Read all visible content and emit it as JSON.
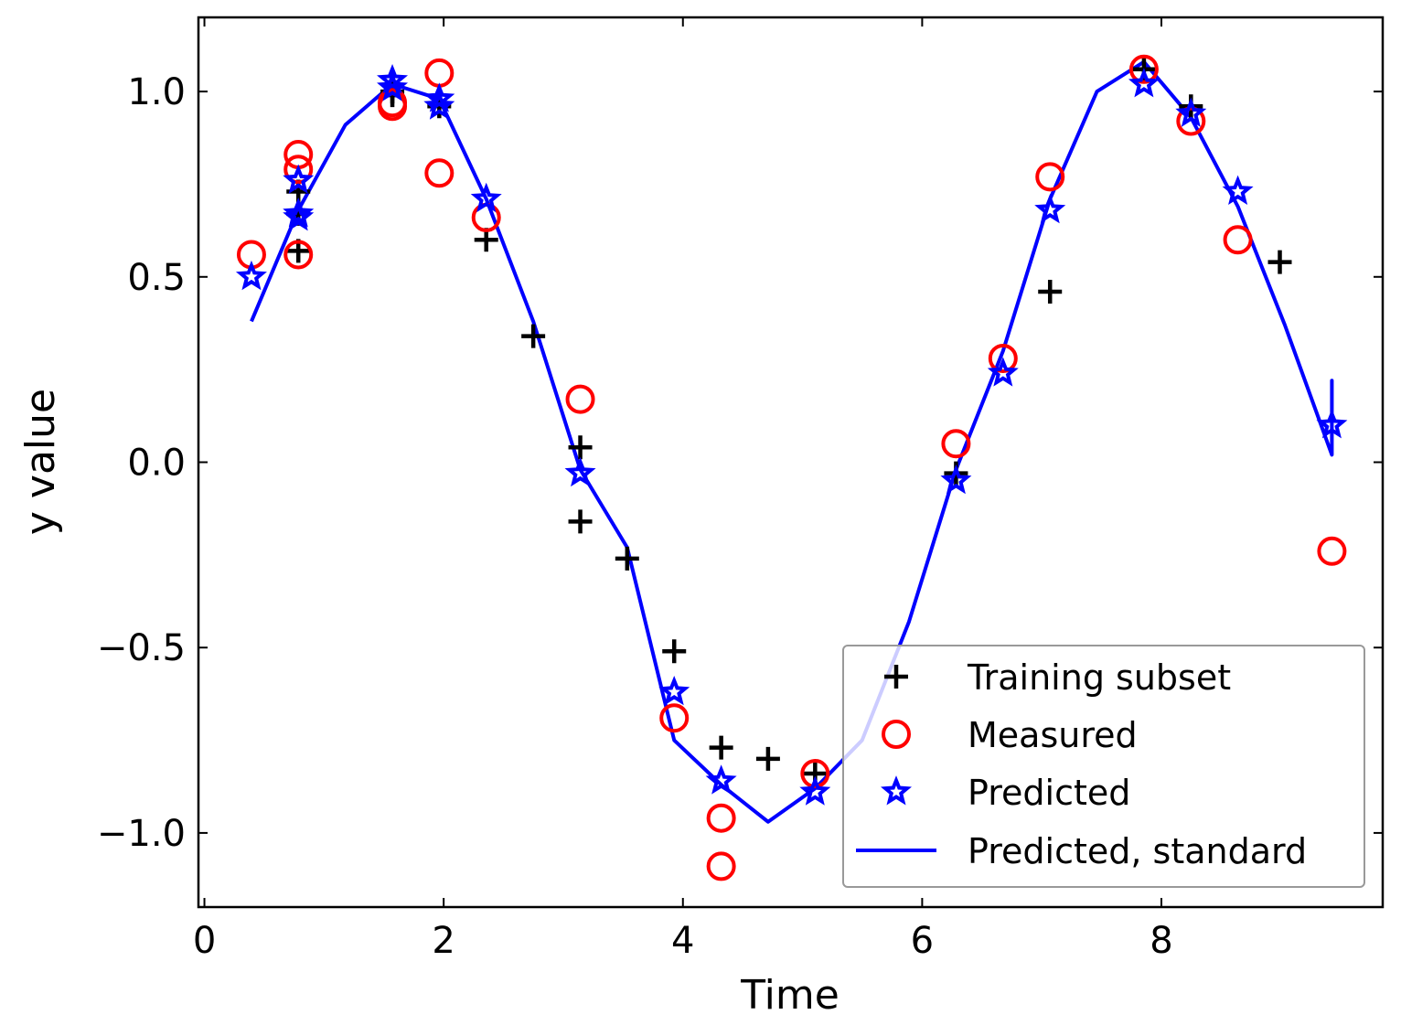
{
  "chart_data": {
    "type": "scatter",
    "title": "",
    "xlabel": "Time",
    "ylabel": "y value",
    "xlim": [
      -0.05,
      9.85
    ],
    "ylim": [
      -1.2,
      1.2
    ],
    "xticks": [
      0,
      2,
      4,
      6,
      8
    ],
    "yticks": [
      1.0,
      0.5,
      0.0,
      -0.5,
      -1.0
    ],
    "xtick_labels": [
      "0",
      "2",
      "4",
      "6",
      "8"
    ],
    "ytick_labels": [
      "1.0",
      "0.5",
      "0.0",
      "−0.5",
      "−1.0"
    ],
    "grid": false,
    "legend_position": "lower-right",
    "colors": {
      "training": "#000000",
      "measured": "#ff0000",
      "predicted": "#0000ff",
      "line": "#0000ff",
      "legend_border": "#999999"
    },
    "series": [
      {
        "name": "Training subset",
        "marker": "plus",
        "x": [
          0.785,
          0.785,
          0.785,
          1.571,
          1.571,
          1.963,
          2.356,
          2.749,
          3.142,
          3.142,
          3.534,
          3.927,
          4.32,
          4.712,
          5.105,
          6.283,
          7.069,
          7.854,
          8.247,
          8.99
        ],
        "y": [
          0.73,
          0.57,
          0.67,
          0.99,
          1.0,
          0.96,
          0.6,
          0.34,
          0.04,
          -0.16,
          -0.26,
          -0.51,
          -0.77,
          -0.8,
          -0.84,
          -0.03,
          0.46,
          1.06,
          0.96,
          0.54
        ]
      },
      {
        "name": "Measured",
        "marker": "circle",
        "x": [
          0.393,
          0.785,
          0.785,
          0.785,
          1.571,
          1.571,
          1.963,
          1.963,
          2.356,
          3.142,
          3.927,
          4.32,
          4.32,
          5.105,
          6.283,
          6.676,
          7.069,
          7.854,
          8.247,
          8.639,
          9.425
        ],
        "y": [
          0.56,
          0.83,
          0.79,
          0.56,
          0.97,
          0.96,
          1.05,
          0.78,
          0.66,
          0.17,
          -0.69,
          -0.96,
          -1.09,
          -0.84,
          0.05,
          0.28,
          0.77,
          1.06,
          0.92,
          0.6,
          -0.24
        ]
      },
      {
        "name": "Predicted",
        "marker": "star",
        "x": [
          0.393,
          0.785,
          0.785,
          0.785,
          1.571,
          1.571,
          1.963,
          1.963,
          2.356,
          3.142,
          3.927,
          4.32,
          5.105,
          6.283,
          6.676,
          7.069,
          7.854,
          8.247,
          8.639,
          9.425
        ],
        "y": [
          0.5,
          0.76,
          0.67,
          0.66,
          1.03,
          1.01,
          0.98,
          0.96,
          0.71,
          -0.03,
          -0.62,
          -0.86,
          -0.89,
          -0.05,
          0.24,
          0.68,
          1.02,
          0.94,
          0.73,
          0.1
        ]
      },
      {
        "name": "Predicted, standard",
        "marker": "line",
        "x": [
          0.393,
          0.785,
          1.178,
          1.571,
          1.963,
          2.356,
          2.749,
          3.142,
          3.534,
          3.927,
          4.32,
          4.712,
          5.105,
          5.498,
          5.89,
          6.283,
          6.676,
          7.069,
          7.461,
          7.854,
          8.247,
          8.639,
          9.032,
          9.425,
          9.425,
          9.425
        ],
        "y": [
          0.38,
          0.68,
          0.91,
          1.02,
          0.98,
          0.71,
          0.38,
          -0.02,
          -0.23,
          -0.75,
          -0.87,
          -0.97,
          -0.88,
          -0.75,
          -0.43,
          -0.02,
          0.3,
          0.71,
          1.0,
          1.08,
          0.93,
          0.69,
          0.37,
          0.02,
          0.22,
          0.02
        ]
      }
    ]
  }
}
